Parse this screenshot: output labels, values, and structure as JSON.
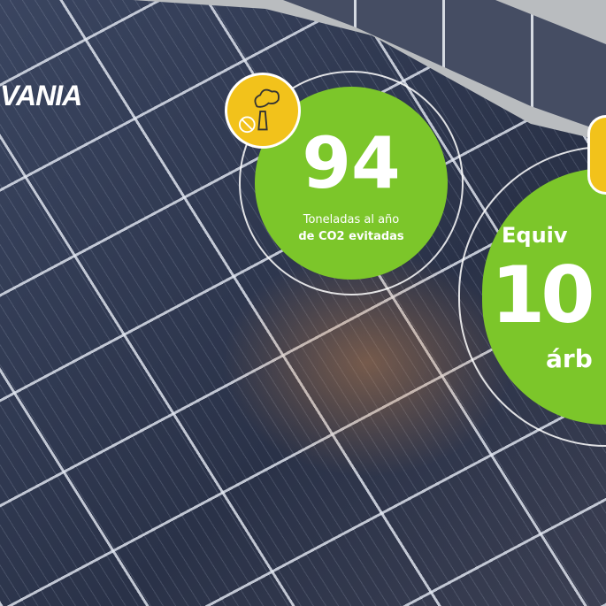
{
  "logo": {
    "text": "VANIA"
  },
  "stat1": {
    "value": "94",
    "line1": "Toneladas al año",
    "line2": "de CO2 evitadas",
    "icon": "factory-smoke-icon"
  },
  "stat2": {
    "label": "Equiv",
    "value": "10",
    "unit": "árb",
    "icon": "tree-icon"
  },
  "colors": {
    "green": "#7cc62a",
    "yellow": "#f2c21b"
  }
}
